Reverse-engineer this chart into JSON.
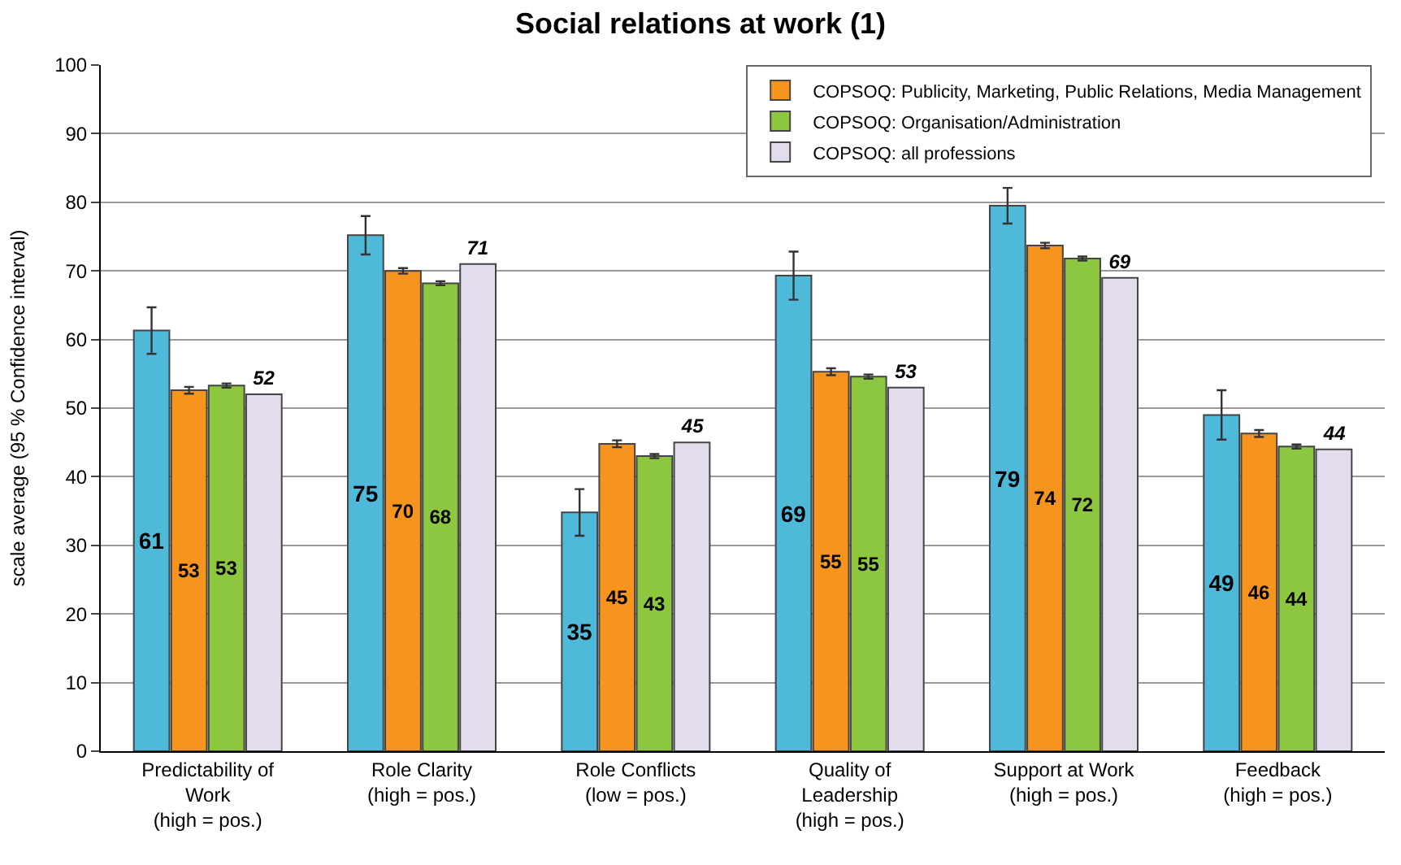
{
  "chart_data": {
    "type": "bar",
    "title": "Social relations at work (1)",
    "ylabel": "scale average (95 % Confidence interval)",
    "categories": [
      "Predictability of\nWork\n(high = pos.)",
      "Role Clarity\n(high = pos.)",
      "Role Conflicts\n(low = pos.)",
      "Quality of\nLeadership\n(high = pos.)",
      "Support at Work\n(high = pos.)",
      "Feedback\n(high = pos.)"
    ],
    "series": [
      {
        "color": "#4fb9d9",
        "values": [
          61.3,
          75.2,
          34.8,
          69.3,
          79.5,
          49
        ],
        "errors": [
          3.4,
          2.8,
          3.4,
          3.5,
          2.6,
          3.6
        ],
        "value_labels": [
          "61",
          "75",
          "35",
          "69",
          "79",
          "49"
        ]
      },
      {
        "name": "COPSOQ: Publicity, Marketing, Public Relations, Media Management",
        "color": "#f7941d",
        "values": [
          52.6,
          70,
          44.8,
          55.3,
          73.7,
          46.3
        ],
        "errors": [
          0.5,
          0.4,
          0.5,
          0.5,
          0.4,
          0.5
        ],
        "value_labels": [
          "53",
          "70",
          "45",
          "55",
          "74",
          "46"
        ]
      },
      {
        "name": "COPSOQ: Organisation/Administration",
        "color": "#8dc63f",
        "values": [
          53.3,
          68.2,
          43,
          54.6,
          71.8,
          44.4
        ],
        "errors": [
          0.3,
          0.3,
          0.3,
          0.3,
          0.3,
          0.3
        ],
        "value_labels": [
          "53",
          "68",
          "43",
          "55",
          "72",
          "44"
        ]
      },
      {
        "name": "COPSOQ: all professions",
        "color": "#e3dcec",
        "values": [
          52,
          71,
          45,
          53,
          69,
          44
        ],
        "value_labels": [
          "52",
          "71",
          "45",
          "53",
          "69",
          "44"
        ]
      }
    ],
    "ylim": [
      0,
      100
    ],
    "yticks": [
      0,
      10,
      20,
      30,
      40,
      50,
      60,
      70,
      80,
      90,
      100
    ],
    "grid": "y",
    "legend": "top right"
  }
}
